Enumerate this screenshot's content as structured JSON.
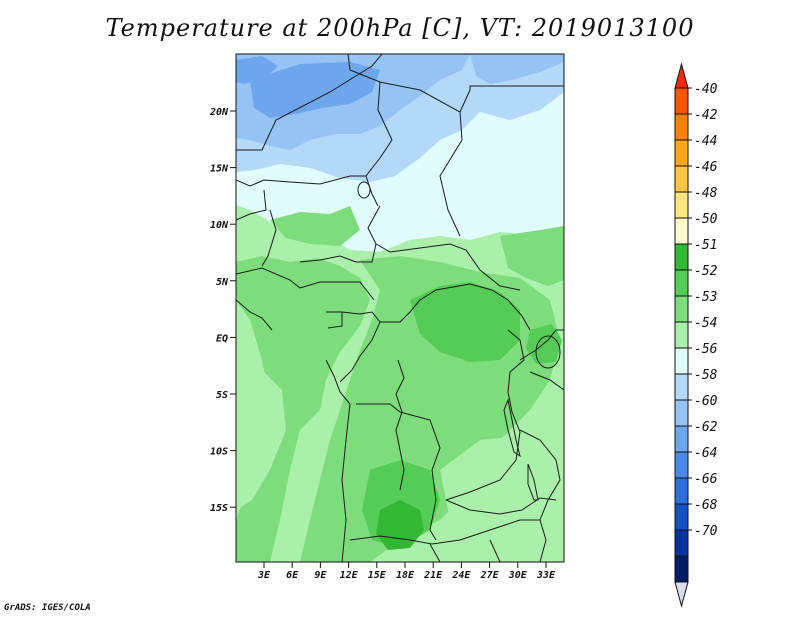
{
  "title": "Temperature at 200hPa [C], VT: 2019013100",
  "credit": "GrADS: IGES/COLA",
  "lat_ticks": [
    "20N",
    "15N",
    "10N",
    "5N",
    "EQ",
    "5S",
    "10S",
    "15S"
  ],
  "lon_ticks": [
    "3E",
    "6E",
    "9E",
    "12E",
    "15E",
    "18E",
    "21E",
    "24E",
    "27E",
    "30E",
    "33E"
  ],
  "colorbar": {
    "labels": [
      "-40",
      "-42",
      "-44",
      "-46",
      "-48",
      "-50",
      "-51",
      "-52",
      "-53",
      "-54",
      "-56",
      "-58",
      "-60",
      "-62",
      "-64",
      "-66",
      "-68",
      "-70"
    ],
    "colors": [
      "#ff2a00",
      "#ff5500",
      "#ff8000",
      "#ffa61a",
      "#ffc640",
      "#ffe680",
      "#fffacc",
      "#33b833",
      "#55cc55",
      "#7ddd7d",
      "#aaf0aa",
      "#e0fcfc",
      "#b4d8f8",
      "#96c3f4",
      "#6ea6ee",
      "#4a8ae6",
      "#2e6ede",
      "#1650c8",
      "#0a32a0",
      "#001a64",
      "#dcdcf0"
    ]
  }
}
